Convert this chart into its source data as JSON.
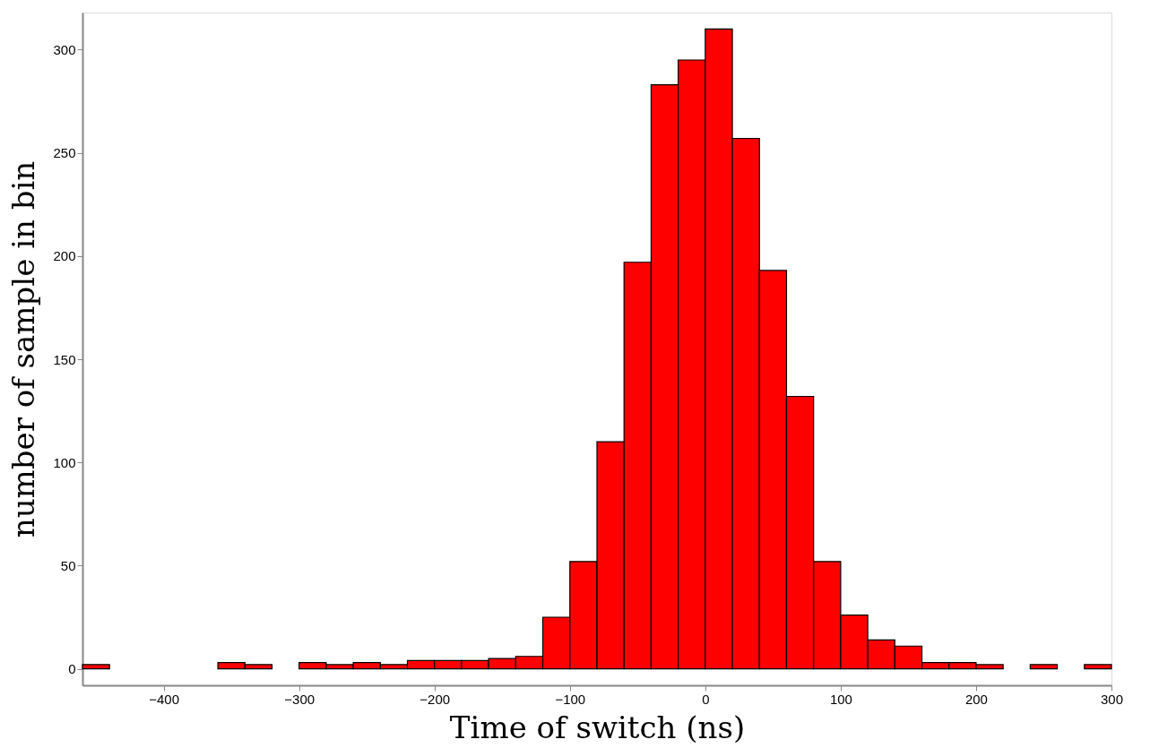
{
  "chart_data": {
    "type": "histogram",
    "xlabel": "Time of switch (ns)",
    "ylabel": "number of sample in bin",
    "bins": [
      -460,
      -440,
      -420,
      -400,
      -380,
      -360,
      -340,
      -320,
      -300,
      -280,
      -260,
      -240,
      -220,
      -200,
      -180,
      -160,
      -140,
      -120,
      -100,
      -80,
      -60,
      -40,
      -20,
      0,
      20,
      40,
      60,
      80,
      100,
      120,
      140,
      160,
      180,
      200,
      220,
      240,
      260,
      280,
      300
    ],
    "values": [
      2,
      0,
      0,
      0,
      0,
      3,
      2,
      0,
      3,
      2,
      3,
      2,
      4,
      4,
      4,
      5,
      6,
      25,
      52,
      110,
      197,
      283,
      295,
      310,
      257,
      193,
      132,
      52,
      26,
      14,
      11,
      3,
      3,
      2,
      0,
      2,
      0,
      2
    ],
    "color": "#ff0000",
    "xlim": [
      -460,
      300
    ],
    "xticks": [
      -400,
      -300,
      -200,
      -100,
      0,
      100,
      200,
      300
    ],
    "ylim": [
      -8,
      318
    ],
    "yticks": [
      0,
      50,
      100,
      150,
      200,
      250,
      300
    ],
    "grid": false
  }
}
